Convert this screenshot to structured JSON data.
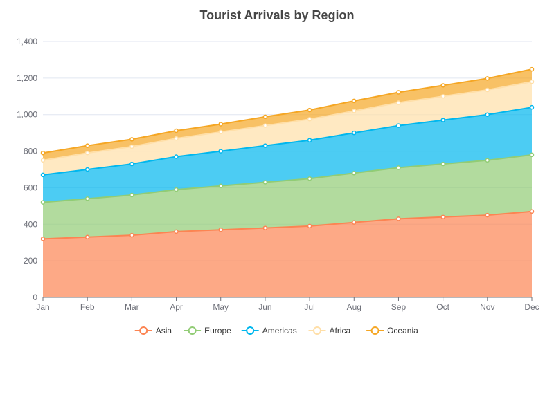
{
  "chart_data": {
    "type": "area",
    "stacked": true,
    "title": "Tourist Arrivals by Region",
    "xlabel": "",
    "ylabel": "",
    "categories": [
      "Jan",
      "Feb",
      "Mar",
      "Apr",
      "May",
      "Jun",
      "Jul",
      "Aug",
      "Sep",
      "Oct",
      "Nov",
      "Dec"
    ],
    "ylim": [
      0,
      1400
    ],
    "yticks": [
      0,
      200,
      400,
      600,
      800,
      1000,
      1200,
      1400
    ],
    "ytick_labels": [
      "0",
      "200",
      "400",
      "600",
      "800",
      "1,000",
      "1,200",
      "1,400"
    ],
    "grid": true,
    "legend_position": "bottom",
    "series": [
      {
        "name": "Asia",
        "color": "#fc8452",
        "values": [
          320,
          330,
          340,
          360,
          370,
          380,
          390,
          410,
          430,
          440,
          450,
          470
        ]
      },
      {
        "name": "Europe",
        "color": "#91cc75",
        "values": [
          200,
          210,
          220,
          230,
          240,
          250,
          260,
          270,
          280,
          290,
          300,
          310
        ]
      },
      {
        "name": "Americas",
        "color": "#00b7ee",
        "values": [
          150,
          160,
          170,
          180,
          190,
          200,
          210,
          220,
          230,
          240,
          250,
          260
        ]
      },
      {
        "name": "Africa",
        "color": "#ffdfa8",
        "values": [
          80,
          90,
          95,
          100,
          105,
          110,
          115,
          120,
          125,
          130,
          135,
          140
        ]
      },
      {
        "name": "Oceania",
        "color": "#f5a623",
        "values": [
          40,
          40,
          40,
          42,
          43,
          48,
          50,
          55,
          57,
          60,
          63,
          68
        ]
      }
    ]
  }
}
